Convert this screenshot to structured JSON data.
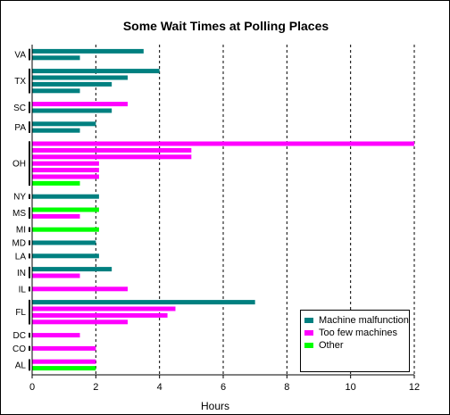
{
  "chart_data": {
    "type": "bar",
    "orientation": "horizontal",
    "title": "Some Wait Times at Polling Places",
    "xlabel": "Hours",
    "ylabel": "",
    "xlim": [
      0,
      12
    ],
    "xticks": [
      0,
      2,
      4,
      6,
      8,
      10,
      12
    ],
    "grid": "vertical dashed",
    "legend_position": "bottom-right",
    "colors": {
      "Machine malfunction": "#008080",
      "Too few machines": "#ff00ff",
      "Other": "#00ff00"
    },
    "series": [
      {
        "name": "Machine malfunction"
      },
      {
        "name": "Too few machines"
      },
      {
        "name": "Other"
      }
    ],
    "groups": [
      {
        "state": "VA",
        "bars": [
          {
            "value": 3.5,
            "series": "Machine malfunction"
          },
          {
            "value": 1.5,
            "series": "Machine malfunction"
          }
        ]
      },
      {
        "state": "TX",
        "bars": [
          {
            "value": 4.0,
            "series": "Machine malfunction"
          },
          {
            "value": 3.0,
            "series": "Machine malfunction"
          },
          {
            "value": 2.5,
            "series": "Machine malfunction"
          },
          {
            "value": 1.5,
            "series": "Machine malfunction"
          }
        ]
      },
      {
        "state": "SC",
        "bars": [
          {
            "value": 3.0,
            "series": "Too few machines"
          },
          {
            "value": 2.5,
            "series": "Machine malfunction"
          }
        ]
      },
      {
        "state": "PA",
        "bars": [
          {
            "value": 2.0,
            "series": "Machine malfunction"
          },
          {
            "value": 1.5,
            "series": "Machine malfunction"
          }
        ]
      },
      {
        "state": "OH",
        "bars": [
          {
            "value": 12.0,
            "series": "Too few machines"
          },
          {
            "value": 5.0,
            "series": "Too few machines"
          },
          {
            "value": 5.0,
            "series": "Too few machines"
          },
          {
            "value": 2.1,
            "series": "Too few machines"
          },
          {
            "value": 2.1,
            "series": "Too few machines"
          },
          {
            "value": 2.1,
            "series": "Too few machines"
          },
          {
            "value": 1.5,
            "series": "Other"
          }
        ]
      },
      {
        "state": "NY",
        "bars": [
          {
            "value": 2.1,
            "series": "Machine malfunction"
          }
        ]
      },
      {
        "state": "MS",
        "bars": [
          {
            "value": 2.1,
            "series": "Other"
          },
          {
            "value": 1.5,
            "series": "Too few machines"
          }
        ]
      },
      {
        "state": "MI",
        "bars": [
          {
            "value": 2.1,
            "series": "Other"
          }
        ]
      },
      {
        "state": "MD",
        "bars": [
          {
            "value": 2.0,
            "series": "Machine malfunction"
          }
        ]
      },
      {
        "state": "LA",
        "bars": [
          {
            "value": 2.1,
            "series": "Machine malfunction"
          }
        ]
      },
      {
        "state": "IN",
        "bars": [
          {
            "value": 2.5,
            "series": "Machine malfunction"
          },
          {
            "value": 1.5,
            "series": "Too few machines"
          }
        ]
      },
      {
        "state": "IL",
        "bars": [
          {
            "value": 3.0,
            "series": "Too few machines"
          }
        ]
      },
      {
        "state": "FL",
        "bars": [
          {
            "value": 7.0,
            "series": "Machine malfunction"
          },
          {
            "value": 4.5,
            "series": "Too few machines"
          },
          {
            "value": 4.25,
            "series": "Too few machines"
          },
          {
            "value": 3.0,
            "series": "Too few machines"
          }
        ]
      },
      {
        "state": "DC",
        "bars": [
          {
            "value": 1.5,
            "series": "Too few machines"
          }
        ]
      },
      {
        "state": "CO",
        "bars": [
          {
            "value": 2.0,
            "series": "Too few machines"
          }
        ]
      },
      {
        "state": "AL",
        "bars": [
          {
            "value": 2.0,
            "series": "Too few machines"
          },
          {
            "value": 2.0,
            "series": "Other"
          }
        ]
      }
    ]
  }
}
